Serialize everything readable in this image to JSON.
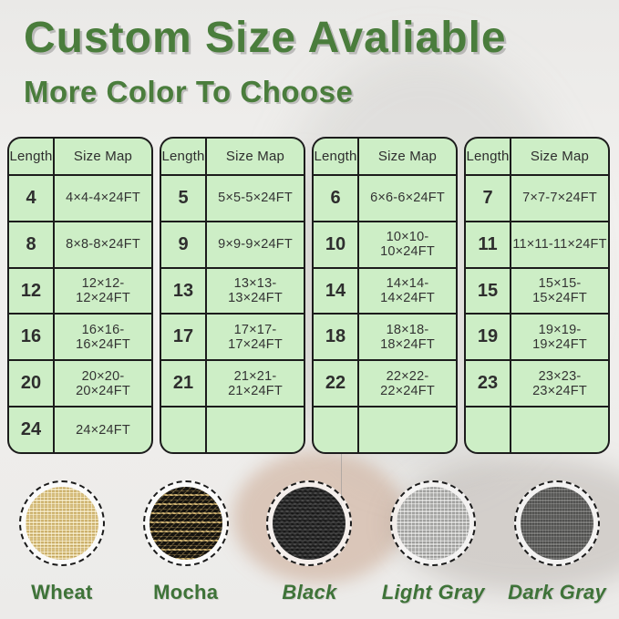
{
  "header": {
    "title": "Custom Size Avaliable",
    "subtitle": "More Color To Choose"
  },
  "size_tables": [
    {
      "headers": [
        "Length",
        "Size Map"
      ],
      "rows": [
        [
          "4",
          "4×4-4×24FT"
        ],
        [
          "8",
          "8×8-8×24FT"
        ],
        [
          "12",
          "12×12-12×24FT"
        ],
        [
          "16",
          "16×16-16×24FT"
        ],
        [
          "20",
          "20×20-20×24FT"
        ],
        [
          "24",
          "24×24FT"
        ]
      ]
    },
    {
      "headers": [
        "Length",
        "Size Map"
      ],
      "rows": [
        [
          "5",
          "5×5-5×24FT"
        ],
        [
          "9",
          "9×9-9×24FT"
        ],
        [
          "13",
          "13×13-13×24FT"
        ],
        [
          "17",
          "17×17-17×24FT"
        ],
        [
          "21",
          "21×21-21×24FT"
        ],
        [
          "",
          ""
        ]
      ]
    },
    {
      "headers": [
        "Length",
        "Size Map"
      ],
      "rows": [
        [
          "6",
          "6×6-6×24FT"
        ],
        [
          "10",
          "10×10-10×24FT"
        ],
        [
          "14",
          "14×14-14×24FT"
        ],
        [
          "18",
          "18×18-18×24FT"
        ],
        [
          "22",
          "22×22-22×24FT"
        ],
        [
          "",
          ""
        ]
      ]
    },
    {
      "headers": [
        "Length",
        "Size Map"
      ],
      "rows": [
        [
          "7",
          "7×7-7×24FT"
        ],
        [
          "11",
          "11×11-11×24FT"
        ],
        [
          "15",
          "15×15-15×24FT"
        ],
        [
          "19",
          "19×19-19×24FT"
        ],
        [
          "23",
          "23×23-23×24FT"
        ],
        [
          "",
          ""
        ]
      ]
    }
  ],
  "color_swatches": [
    {
      "label": "Wheat",
      "color": "#e0cb8d",
      "italic": false
    },
    {
      "label": "Mocha",
      "color": "#55492e",
      "italic": false
    },
    {
      "label": "Black",
      "color": "#2e2e2e",
      "italic": true
    },
    {
      "label": "Light Gray",
      "color": "#b7b7b5",
      "italic": true
    },
    {
      "label": "Dark Gray",
      "color": "#686866",
      "italic": true
    }
  ],
  "theme": {
    "heading_green": "#4a7d3c",
    "label_green": "#3e7338",
    "table_fill_green": "#cdeec6",
    "table_border": "#1c1c1c"
  }
}
